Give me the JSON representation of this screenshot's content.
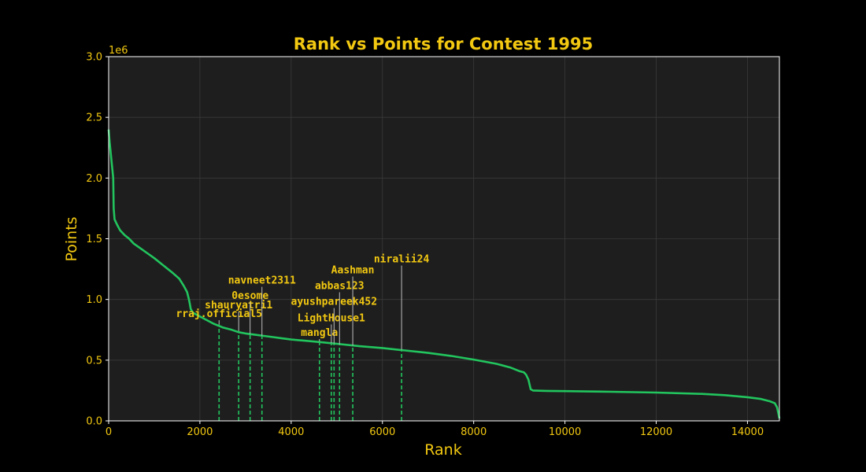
{
  "chart_data": {
    "type": "line",
    "title": "Rank vs Points for Contest 1995",
    "xlabel": "Rank",
    "ylabel": "Points",
    "y_offset_label": "1e6",
    "xlim": [
      0,
      14700
    ],
    "ylim": [
      0,
      3.0
    ],
    "xticks": [
      "0",
      "2000",
      "4000",
      "6000",
      "8000",
      "10000",
      "12000",
      "14000"
    ],
    "xtick_values": [
      0,
      2000,
      4000,
      6000,
      8000,
      10000,
      12000,
      14000
    ],
    "yticks": [
      "0.0",
      "0.5",
      "1.0",
      "1.5",
      "2.0",
      "2.5",
      "3.0"
    ],
    "ytick_values": [
      0,
      0.5,
      1.0,
      1.5,
      2.0,
      2.5,
      3.0
    ],
    "grid": true,
    "colors": {
      "background": "#000000",
      "plot_background": "#1e1e1e",
      "line": "#22c55e",
      "text": "#f2c811",
      "grid": "#3a3a3a",
      "connector": "#bdbdbd"
    },
    "series": [
      {
        "x": [
          0,
          20,
          60,
          100,
          110,
          130,
          180,
          250,
          350,
          450,
          550,
          700,
          850,
          1000,
          1200,
          1400,
          1550,
          1650,
          1720,
          1760,
          1780,
          1800,
          1850,
          1950,
          2100,
          2300,
          2500,
          2700,
          2850,
          3000,
          3200,
          3400,
          3600,
          3800,
          4000,
          4300,
          4600,
          5000,
          5500,
          6000,
          6500,
          7000,
          7500,
          8000,
          8500,
          8800,
          9000,
          9100,
          9150,
          9200,
          9250,
          9300,
          9600,
          10000,
          11000,
          12000,
          13000,
          13500,
          14000,
          14300,
          14500,
          14600,
          14650,
          14700
        ],
        "y": [
          2.4,
          2.3,
          2.15,
          2.0,
          1.75,
          1.66,
          1.62,
          1.57,
          1.53,
          1.5,
          1.46,
          1.42,
          1.38,
          1.34,
          1.28,
          1.22,
          1.17,
          1.11,
          1.06,
          1.0,
          0.96,
          0.92,
          0.89,
          0.87,
          0.84,
          0.8,
          0.77,
          0.75,
          0.73,
          0.72,
          0.71,
          0.7,
          0.69,
          0.68,
          0.67,
          0.66,
          0.65,
          0.635,
          0.615,
          0.6,
          0.58,
          0.56,
          0.535,
          0.505,
          0.47,
          0.44,
          0.41,
          0.4,
          0.38,
          0.34,
          0.26,
          0.25,
          0.247,
          0.245,
          0.24,
          0.233,
          0.222,
          0.212,
          0.195,
          0.18,
          0.16,
          0.145,
          0.11,
          0.02
        ]
      }
    ],
    "markers": [
      {
        "name": "rraj.official5",
        "rank": 2420,
        "points": 0.795
      },
      {
        "name": "shauryatri1",
        "rank": 2850,
        "points": 0.74
      },
      {
        "name": "0esome",
        "rank": 3100,
        "points": 0.715
      },
      {
        "name": "navneet2311",
        "rank": 3360,
        "points": 0.7
      },
      {
        "name": "mangla",
        "rank": 4620,
        "points": 0.655
      },
      {
        "name": "LightHouse1",
        "rank": 4880,
        "points": 0.64
      },
      {
        "name": "ayushpareek452",
        "rank": 4940,
        "points": 0.637
      },
      {
        "name": "abbas123",
        "rank": 5060,
        "points": 0.63
      },
      {
        "name": "Aashman",
        "rank": 5350,
        "points": 0.62
      },
      {
        "name": "niralii24",
        "rank": 6420,
        "points": 0.585
      }
    ],
    "annotation_levels": [
      {
        "name": "rraj.official5",
        "label_y": 0.855
      },
      {
        "name": "shauryatri1",
        "label_y": 0.925
      },
      {
        "name": "0esome",
        "label_y": 1.005
      },
      {
        "name": "navneet2311",
        "label_y": 1.13
      },
      {
        "name": "mangla",
        "label_y": 0.7
      },
      {
        "name": "LightHouse1",
        "label_y": 0.82
      },
      {
        "name": "ayushpareek452",
        "label_y": 0.955
      },
      {
        "name": "abbas123",
        "label_y": 1.085
      },
      {
        "name": "Aashman",
        "label_y": 1.215
      },
      {
        "name": "niralii24",
        "label_y": 1.305
      }
    ]
  }
}
